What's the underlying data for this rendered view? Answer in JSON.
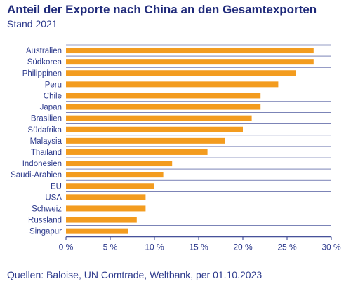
{
  "title": "Anteil der Exporte nach China an den Gesamtexporten",
  "subtitle": "Stand 2021",
  "source": "Quellen: Baloise, UN Comtrade, Weltbank, per 01.10.2023",
  "colors": {
    "bar": "#f39c1f",
    "text": "#2d3a8c",
    "grid": "#2d3a8c"
  },
  "chart_data": {
    "type": "bar",
    "orientation": "horizontal",
    "title": "Anteil der Exporte nach China an den Gesamtexporten",
    "subtitle": "Stand 2021",
    "categories": [
      "Australien",
      "Südkorea",
      "Philippinen",
      "Peru",
      "Chile",
      "Japan",
      "Brasilien",
      "Südafrika",
      "Malaysia",
      "Thailand",
      "Indonesien",
      "Saudi-Arabien",
      "EU",
      "USA",
      "Schweiz",
      "Russland",
      "Singapur"
    ],
    "values": [
      28,
      28,
      26,
      24,
      22,
      22,
      21,
      20,
      18,
      16,
      12,
      11,
      10,
      9,
      9,
      8,
      7
    ],
    "xlim": [
      0,
      30
    ],
    "xticks": [
      0,
      5,
      10,
      15,
      20,
      25,
      30
    ],
    "xtick_labels": [
      "0 %",
      "5 %",
      "10 %",
      "15 %",
      "20 %",
      "25 %",
      "30 %"
    ],
    "grid": "horizontal row separators"
  }
}
